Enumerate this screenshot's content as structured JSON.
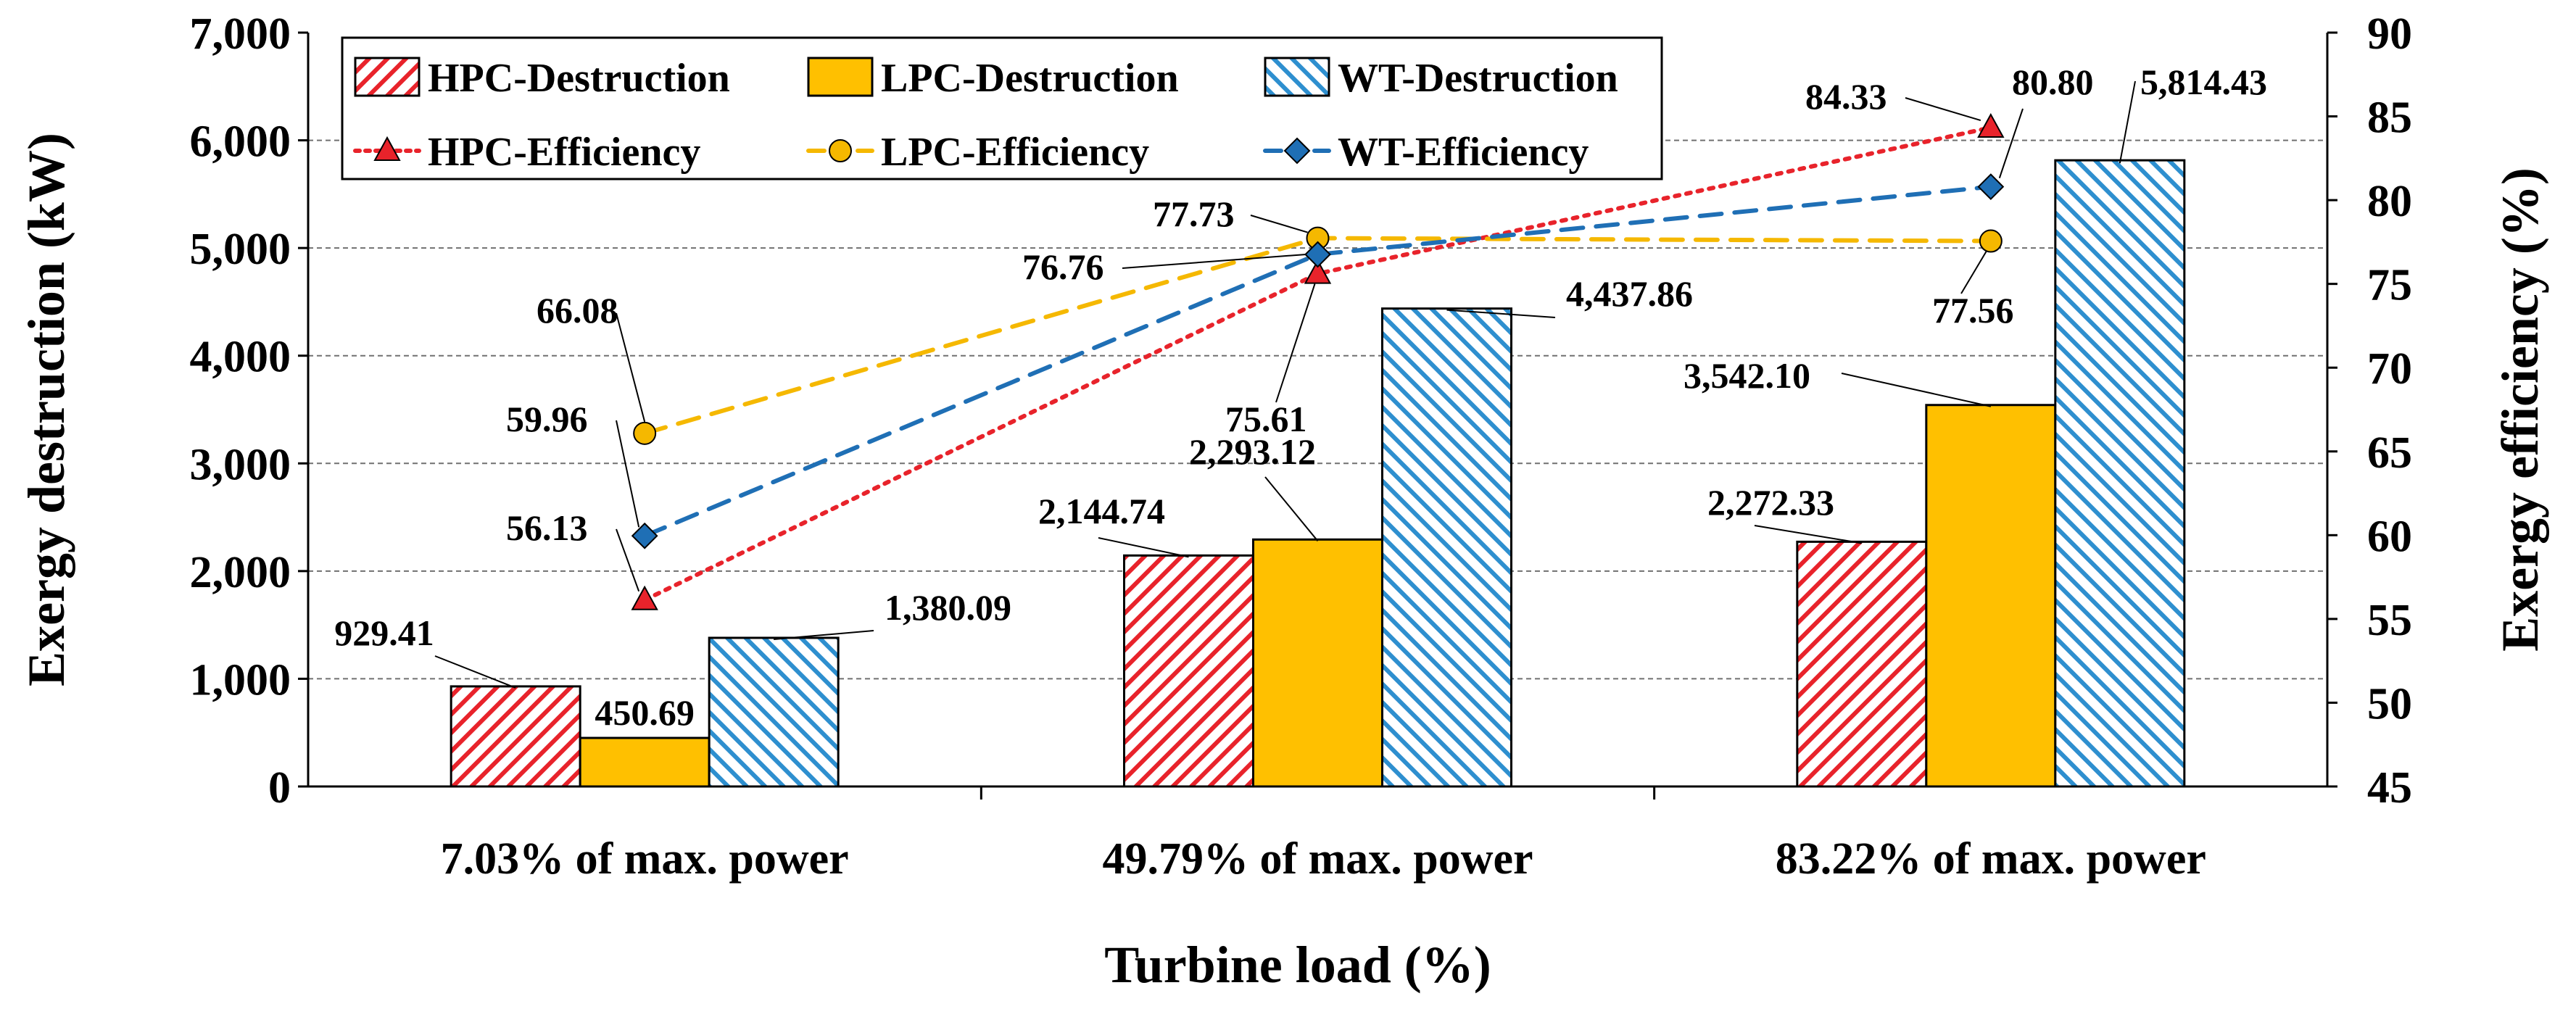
{
  "chart_data": {
    "type": "bar",
    "categories": [
      "7.03% of max. power",
      "49.79% of max. power",
      "83.22% of max. power"
    ],
    "xlabel": "Turbine load (%)",
    "ylabel": "Exergy destruction (kW)",
    "y2label": "Exergy efficiency (%)",
    "ylim": [
      0,
      7000
    ],
    "y2lim": [
      45,
      90
    ],
    "yticks": [
      "0",
      "1,000",
      "2,000",
      "3,000",
      "4,000",
      "5,000",
      "6,000",
      "7,000"
    ],
    "y2ticks": [
      "45",
      "50",
      "55",
      "60",
      "65",
      "70",
      "75",
      "80",
      "85",
      "90"
    ],
    "grid": true,
    "legend_position": "top",
    "bar_series": [
      {
        "name": "HPC-Destruction",
        "color": "#e8232b",
        "pattern": "hatch-red",
        "values": [
          929.41,
          2144.74,
          2272.33
        ],
        "labels": [
          "929.41",
          "2,144.74",
          "2,272.33"
        ]
      },
      {
        "name": "LPC-Destruction",
        "color": "#ffc000",
        "pattern": "solid",
        "values": [
          450.69,
          2293.12,
          3542.1
        ],
        "labels": [
          "450.69",
          "2,293.12",
          "3,542.10"
        ]
      },
      {
        "name": "WT-Destruction",
        "color": "#2e8fcf",
        "pattern": "hatch-blue",
        "values": [
          1380.09,
          4437.86,
          5814.43
        ],
        "labels": [
          "1,380.09",
          "4,437.86",
          "5,814.43"
        ]
      }
    ],
    "line_series": [
      {
        "name": "HPC-Efficiency",
        "color": "#e8232b",
        "marker": "triangle",
        "dash": "dotted",
        "values": [
          56.13,
          75.61,
          84.33
        ],
        "labels": [
          "56.13",
          "75.61",
          "84.33"
        ]
      },
      {
        "name": "LPC-Efficiency",
        "color": "#f5b800",
        "marker": "circle",
        "dash": "dashed",
        "values": [
          66.08,
          77.73,
          77.56
        ],
        "labels": [
          "66.08",
          "77.73",
          "77.56"
        ]
      },
      {
        "name": "WT-Efficiency",
        "color": "#1f6fb5",
        "marker": "diamond",
        "dash": "dashed",
        "values": [
          59.96,
          76.76,
          80.8
        ],
        "labels": [
          "59.96",
          "76.76",
          "80.80"
        ]
      }
    ]
  }
}
